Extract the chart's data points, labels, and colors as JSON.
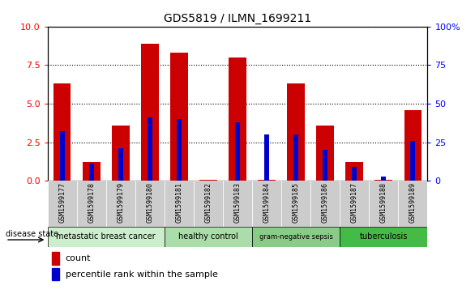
{
  "title": "GDS5819 / ILMN_1699211",
  "samples": [
    "GSM1599177",
    "GSM1599178",
    "GSM1599179",
    "GSM1599180",
    "GSM1599181",
    "GSM1599182",
    "GSM1599183",
    "GSM1599184",
    "GSM1599185",
    "GSM1599186",
    "GSM1599187",
    "GSM1599188",
    "GSM1599189"
  ],
  "count_values": [
    6.3,
    1.2,
    3.6,
    8.9,
    8.3,
    0.05,
    8.0,
    0.05,
    6.3,
    3.6,
    1.2,
    0.05,
    4.6
  ],
  "percentile_values": [
    3.2,
    1.1,
    2.1,
    4.1,
    4.0,
    0.0,
    3.8,
    3.0,
    3.0,
    2.0,
    0.9,
    0.3,
    2.6
  ],
  "groups": [
    {
      "label": "metastatic breast cancer",
      "start": 0,
      "end": 4,
      "color": "#cceecc"
    },
    {
      "label": "healthy control",
      "start": 4,
      "end": 7,
      "color": "#aaddaa"
    },
    {
      "label": "gram-negative sepsis",
      "start": 7,
      "end": 10,
      "color": "#88cc88"
    },
    {
      "label": "tuberculosis",
      "start": 10,
      "end": 13,
      "color": "#44bb44"
    }
  ],
  "ylim_left": [
    0,
    10
  ],
  "ylim_right": [
    0,
    100
  ],
  "bar_color": "#cc0000",
  "percentile_color": "#0000cc",
  "tick_bg_color": "#cccccc",
  "plot_bg": "#ffffff",
  "disease_state_label": "disease state",
  "legend_count": "count",
  "legend_percentile": "percentile rank within the sample",
  "left_yticks": [
    0,
    2.5,
    5,
    7.5,
    10
  ],
  "right_yticks": [
    0,
    25,
    50,
    75,
    100
  ],
  "right_yticklabels": [
    "0",
    "25",
    "50",
    "75",
    "100%"
  ]
}
